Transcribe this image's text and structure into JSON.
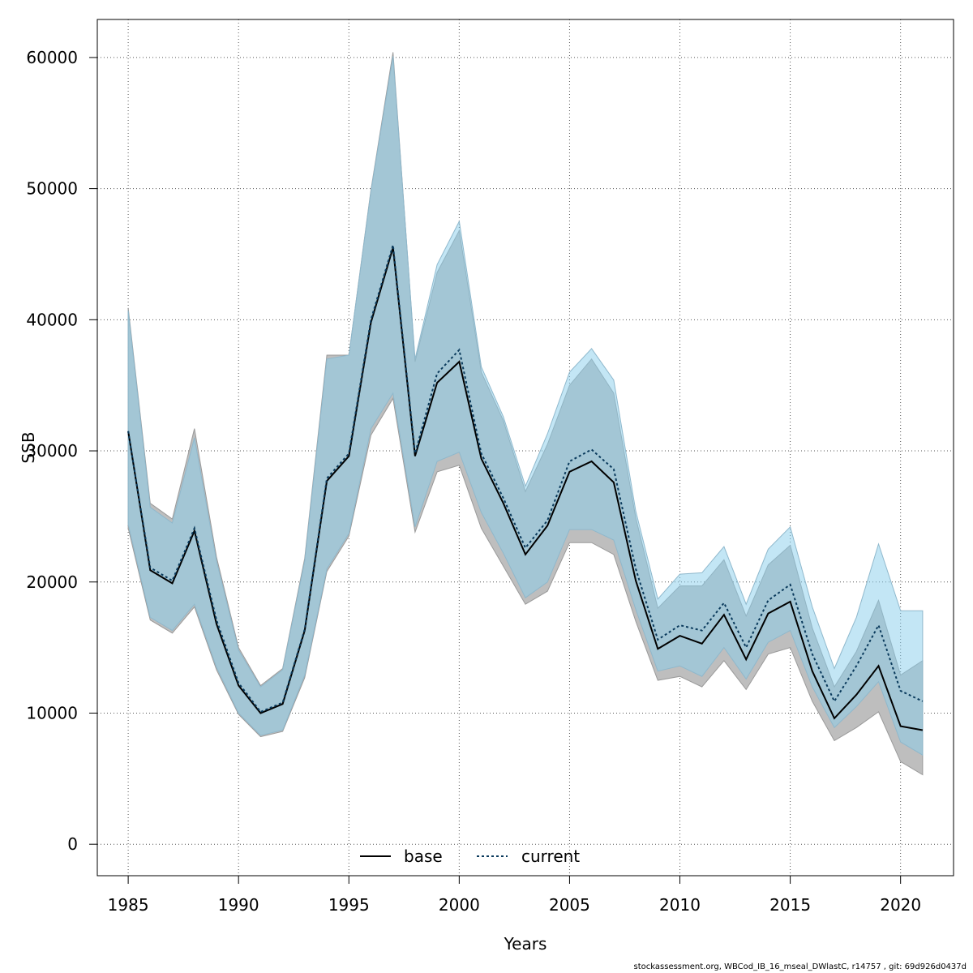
{
  "chart_data": {
    "type": "area",
    "xlabel": "Years",
    "ylabel": "SSB",
    "xticks": [
      1985,
      1990,
      1995,
      2000,
      2005,
      2010,
      2015,
      2020
    ],
    "yticks": [
      0,
      10000,
      20000,
      30000,
      40000,
      50000,
      60000
    ],
    "xlim": [
      1983.6,
      2022.4
    ],
    "ylim": [
      -2400,
      62900
    ],
    "grid": true,
    "legend_position": "bottom",
    "x": [
      1985,
      1986,
      1987,
      1988,
      1989,
      1990,
      1991,
      1992,
      1993,
      1994,
      1995,
      1996,
      1997,
      1998,
      1999,
      2000,
      2001,
      2002,
      2003,
      2004,
      2005,
      2006,
      2007,
      2008,
      2009,
      2010,
      2011,
      2012,
      2013,
      2014,
      2015,
      2016,
      2017,
      2018,
      2019,
      2020,
      2021
    ],
    "series": [
      {
        "name": "base",
        "line_style": "solid",
        "line_color": "#000000",
        "band_color": "#bebebe",
        "values": [
          31500,
          20900,
          19900,
          23900,
          16800,
          12100,
          10000,
          10700,
          16300,
          27700,
          29600,
          39800,
          45500,
          29600,
          35200,
          36800,
          29400,
          26000,
          22100,
          24300,
          28400,
          29200,
          27600,
          20100,
          14900,
          15900,
          15300,
          17500,
          14100,
          17600,
          18500,
          13200,
          9600,
          11400,
          13600,
          9000,
          8700
        ],
        "lower": [
          24100,
          17100,
          16100,
          18100,
          13300,
          9900,
          8200,
          8600,
          12700,
          20800,
          23500,
          31200,
          34000,
          23800,
          28400,
          28900,
          24100,
          21200,
          18300,
          19300,
          23000,
          23000,
          22100,
          17000,
          12500,
          12800,
          12000,
          14000,
          11800,
          14500,
          15000,
          10900,
          7900,
          8900,
          10100,
          6300,
          5300
        ],
        "upper": [
          40900,
          26000,
          24800,
          31700,
          21900,
          15000,
          12100,
          13400,
          21800,
          37300,
          37300,
          49900,
          60400,
          36800,
          43600,
          46800,
          36000,
          32300,
          26900,
          30500,
          35000,
          37000,
          34400,
          24900,
          18000,
          19700,
          19700,
          21700,
          17400,
          21300,
          22800,
          16500,
          12000,
          14700,
          18600,
          12900,
          14000
        ]
      },
      {
        "name": "current",
        "line_style": "dotted",
        "line_color": "#0a3a5c",
        "band_color": "#87ceeb",
        "values": [
          31500,
          21100,
          20100,
          24100,
          17100,
          12300,
          10100,
          10800,
          16400,
          27900,
          29800,
          40000,
          45700,
          29800,
          35900,
          37700,
          29800,
          26400,
          22600,
          24700,
          29200,
          30100,
          28600,
          21000,
          15600,
          16700,
          16300,
          18400,
          15000,
          18600,
          19800,
          14500,
          10900,
          13600,
          16700,
          11700,
          10900
        ],
        "lower": [
          24400,
          17300,
          16300,
          18300,
          13500,
          10000,
          8300,
          8700,
          12900,
          21000,
          23700,
          31700,
          34400,
          24200,
          29200,
          29900,
          25300,
          22200,
          18800,
          20000,
          24000,
          24000,
          23200,
          17900,
          13200,
          13600,
          12800,
          15000,
          12600,
          15400,
          16300,
          12000,
          8900,
          10500,
          12400,
          7800,
          6800
        ],
        "upper": [
          40700,
          25700,
          24500,
          31000,
          21600,
          14800,
          12000,
          13300,
          21600,
          37000,
          37300,
          49800,
          60100,
          37000,
          44200,
          47500,
          36400,
          32600,
          27300,
          31300,
          36000,
          37800,
          35400,
          25400,
          18700,
          20600,
          20700,
          22700,
          18300,
          22500,
          24200,
          18100,
          13400,
          17300,
          22900,
          17800,
          17800
        ]
      }
    ]
  },
  "legend": {
    "items": [
      {
        "label": "base"
      },
      {
        "label": "current"
      }
    ]
  },
  "footnote": "stockassessment.org, WBCod_IB_16_mseal_DWlastC, r14757 , git: 69d926d0437d"
}
